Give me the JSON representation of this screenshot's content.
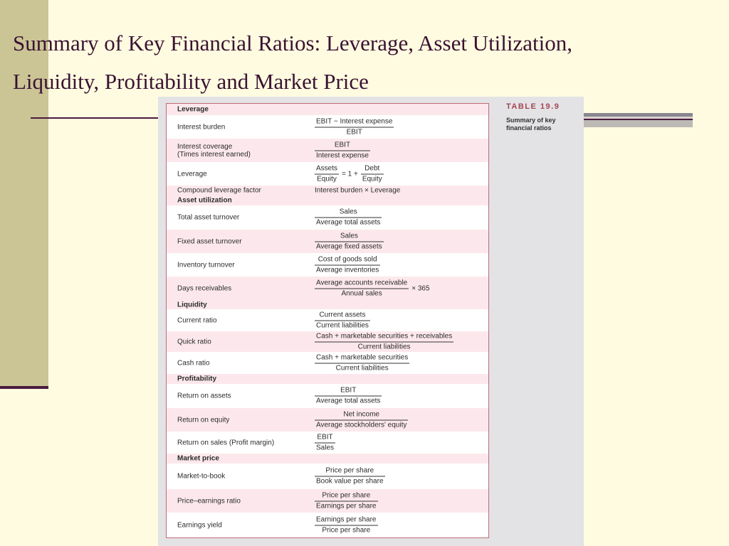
{
  "slide": {
    "title": "Summary of Key Financial Ratios: Leverage, Asset Utilization, Liquidity, Profitability and Market Price"
  },
  "table_tag": "TABLE 19.9",
  "table_caption": "Summary of key financial ratios",
  "rows": [
    {
      "type": "section",
      "label": "Leverage"
    },
    {
      "type": "item",
      "label": "Interest burden",
      "num": "EBIT − Interest expense",
      "den": "EBIT"
    },
    {
      "type": "item",
      "label": "Interest coverage",
      "label2": "(Times interest earned)",
      "num": "EBIT",
      "den": "Interest expense"
    },
    {
      "type": "item",
      "label": "Leverage",
      "num": "Assets",
      "den": "Equity",
      "op": "= 1 +",
      "num2": "Debt",
      "den2": "Equity"
    },
    {
      "type": "item",
      "label": "Compound leverage factor",
      "text": "Interest burden × Leverage"
    },
    {
      "type": "section",
      "label": "Asset utilization"
    },
    {
      "type": "item",
      "label": "Total asset turnover",
      "num": "Sales",
      "den": "Average total assets"
    },
    {
      "type": "item",
      "label": "Fixed asset turnover",
      "num": "Sales",
      "den": "Average fixed assets"
    },
    {
      "type": "item",
      "label": "Inventory turnover",
      "num": "Cost of goods sold",
      "den": "Average inventories"
    },
    {
      "type": "item",
      "label": "Days receivables",
      "num": "Average accounts receivable",
      "den": "Annual sales",
      "suffix": "× 365"
    },
    {
      "type": "section",
      "label": "Liquidity"
    },
    {
      "type": "item",
      "label": "Current ratio",
      "num": "Current assets",
      "den": "Current liabilities"
    },
    {
      "type": "item",
      "label": "Quick ratio",
      "num": "Cash + marketable securities + receivables",
      "den": "Current liabilities"
    },
    {
      "type": "item",
      "label": "Cash ratio",
      "num": "Cash + marketable securities",
      "den": "Current liabilities"
    },
    {
      "type": "section",
      "label": "Profitability"
    },
    {
      "type": "item",
      "label": "Return on assets",
      "num": "EBIT",
      "den": "Average total assets"
    },
    {
      "type": "item",
      "label": "Return on equity",
      "num": "Net income",
      "den": "Average stockholders' equity"
    },
    {
      "type": "item",
      "label": "Return on sales (Profit margin)",
      "num": "EBIT",
      "den": "Sales"
    },
    {
      "type": "section",
      "label": "Market price"
    },
    {
      "type": "item",
      "label": "Market-to-book",
      "num": "Price per share",
      "den": "Book value per share"
    },
    {
      "type": "item",
      "label": "Price–earnings ratio",
      "num": "Price per share",
      "den": "Earnings per share"
    },
    {
      "type": "item",
      "label": "Earnings yield",
      "num": "Earnings per share",
      "den": "Price per share"
    }
  ]
}
